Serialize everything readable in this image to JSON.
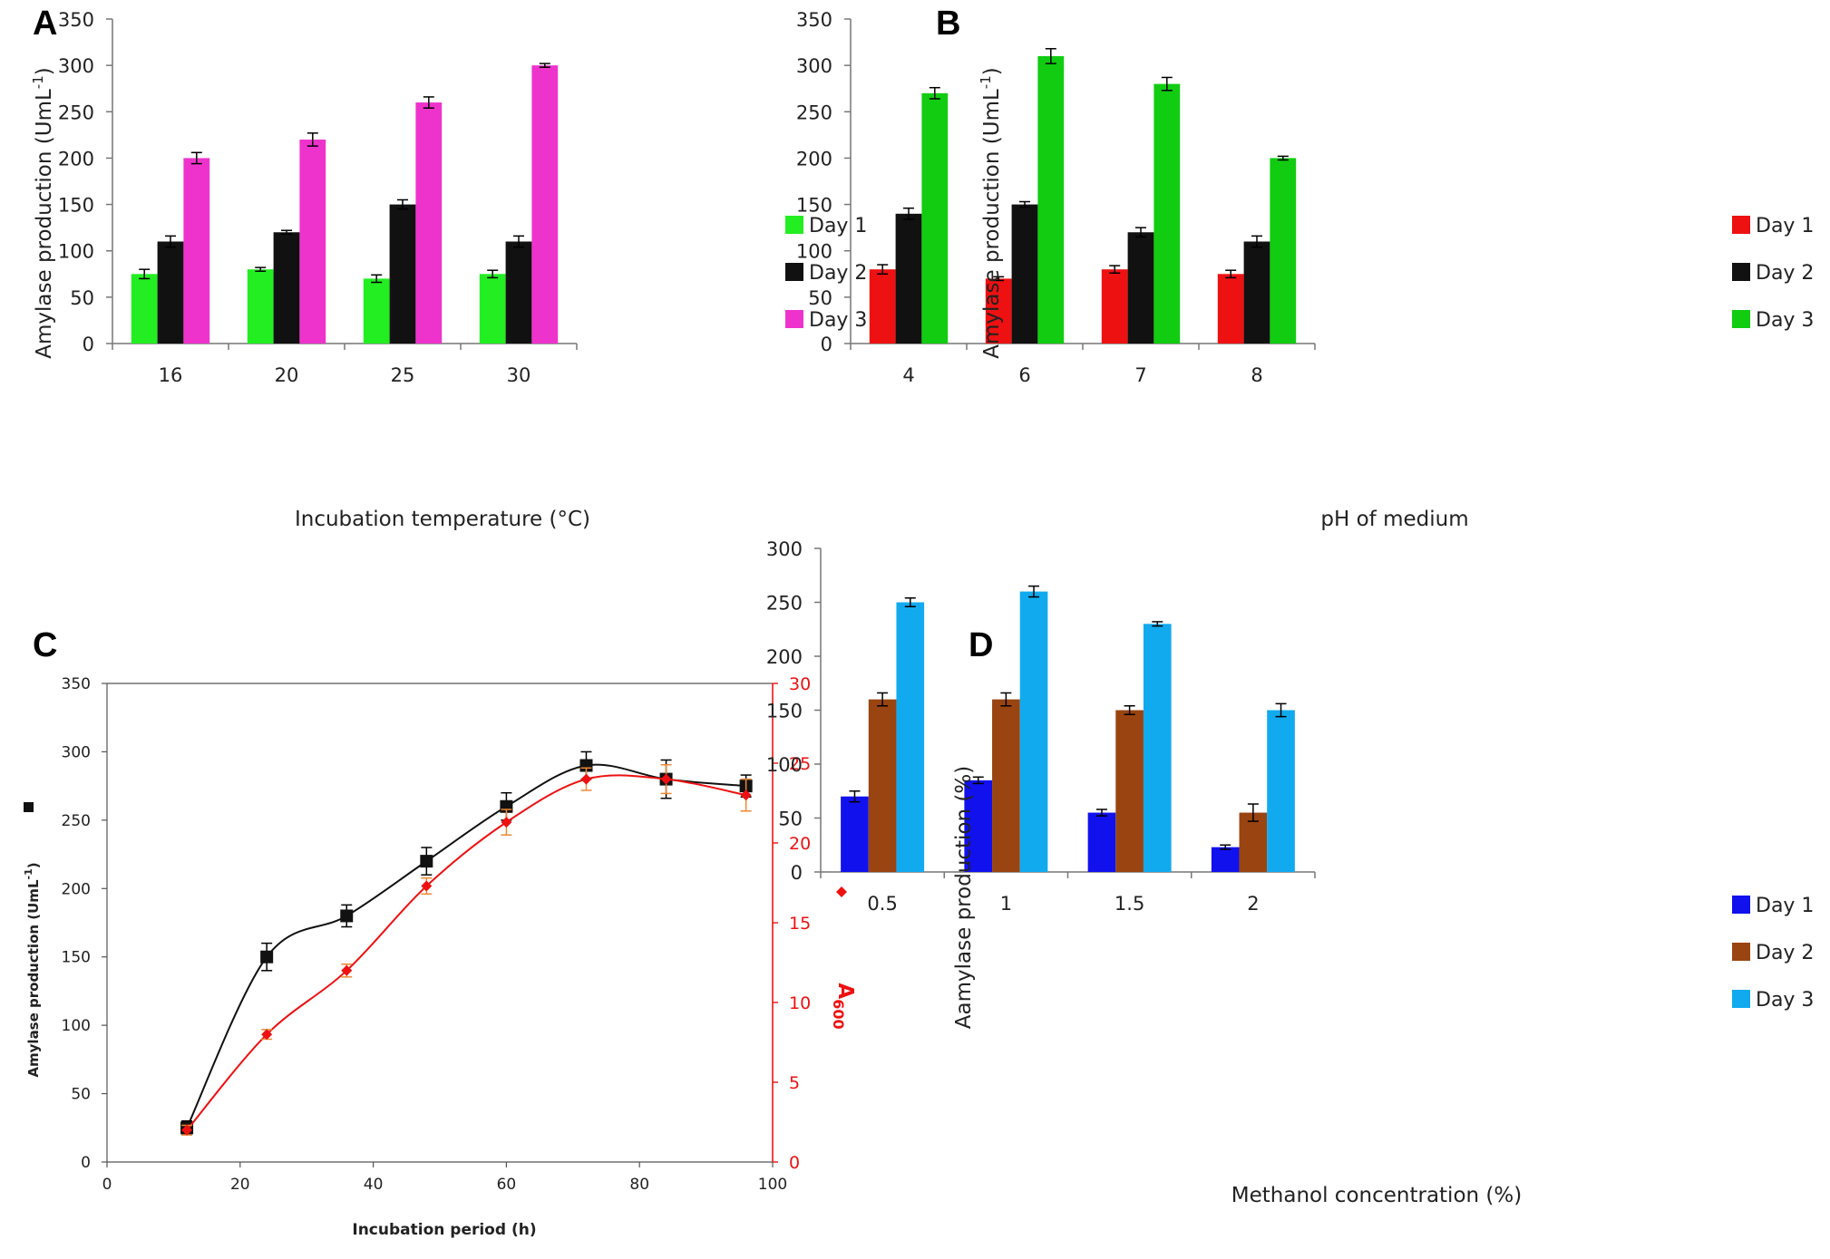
{
  "chart_data": [
    {
      "id": "A",
      "type": "bar",
      "panel_label": "A",
      "title": "",
      "xlabel": "Incubation temperature (°C)",
      "ylabel": "Amylase production (UmL-1)",
      "ylabel_main": "Amylase production (UmL",
      "ylabel_sup": "-1",
      "ylabel_end": ")",
      "ylim": [
        0,
        350
      ],
      "yticks": [
        0,
        50,
        100,
        150,
        200,
        250,
        300,
        350
      ],
      "categories": [
        "16",
        "20",
        "25",
        "30"
      ],
      "legend_position": "right",
      "series": [
        {
          "name": "Day 1",
          "color": "#22ee22",
          "values": [
            75,
            80,
            70,
            75
          ],
          "errors": [
            5,
            2,
            4,
            4
          ]
        },
        {
          "name": "Day 2",
          "color": "#111111",
          "values": [
            110,
            120,
            150,
            110
          ],
          "errors": [
            6,
            2,
            5,
            6
          ]
        },
        {
          "name": "Day 3",
          "color": "#ee33cc",
          "values": [
            200,
            220,
            260,
            300
          ],
          "errors": [
            6,
            7,
            6,
            2
          ]
        }
      ]
    },
    {
      "id": "B",
      "type": "bar",
      "panel_label": "B",
      "title": "",
      "xlabel": "pH of medium",
      "ylabel": "Amylase production (UmL-1)",
      "ylabel_main": "Amylase production (UmL",
      "ylabel_sup": "-1",
      "ylabel_end": ")",
      "ylim": [
        0,
        350
      ],
      "yticks": [
        0,
        50,
        100,
        150,
        200,
        250,
        300,
        350
      ],
      "categories": [
        "4",
        "6",
        "7",
        "8"
      ],
      "legend_position": "right",
      "series": [
        {
          "name": "Day 1",
          "color": "#ee1111",
          "values": [
            80,
            70,
            80,
            75
          ],
          "errors": [
            5,
            2,
            4,
            4
          ]
        },
        {
          "name": "Day 2",
          "color": "#111111",
          "values": [
            140,
            150,
            120,
            110
          ],
          "errors": [
            6,
            3,
            5,
            6
          ]
        },
        {
          "name": "Day 3",
          "color": "#11cc11",
          "values": [
            270,
            310,
            280,
            200
          ],
          "errors": [
            6,
            8,
            7,
            2
          ]
        }
      ]
    },
    {
      "id": "C",
      "type": "line",
      "panel_label": "C",
      "title": "",
      "xlabel": "Incubation period (h)",
      "ylabel": "Amylase production (UmL-1)",
      "ylabel_main": "Amylase production (UmL",
      "ylabel_sup": "-1",
      "ylabel_end": ")",
      "y2label": "A600",
      "y2label_main": "A",
      "y2label_sub": "600",
      "xlim": [
        0,
        100
      ],
      "xticks": [
        0,
        20,
        40,
        60,
        80,
        100
      ],
      "ylim": [
        0,
        350
      ],
      "yticks": [
        0,
        50,
        100,
        150,
        200,
        250,
        300,
        350
      ],
      "y2lim": [
        0,
        30
      ],
      "y2ticks": [
        0,
        5,
        10,
        15,
        20,
        25,
        30
      ],
      "series": [
        {
          "name": "Amylase production",
          "axis": "left",
          "color": "#111111",
          "marker": "square",
          "x": [
            12,
            24,
            36,
            48,
            60,
            72,
            84,
            96
          ],
          "y": [
            25,
            150,
            180,
            220,
            260,
            290,
            280,
            275
          ],
          "errors": [
            5,
            10,
            8,
            10,
            10,
            10,
            14,
            8
          ]
        },
        {
          "name": "A600",
          "axis": "right",
          "color": "#ee1111",
          "marker": "diamond",
          "x": [
            12,
            24,
            36,
            48,
            60,
            72,
            84,
            96
          ],
          "y": [
            2,
            8,
            12,
            17.3,
            21.3,
            24,
            24,
            23
          ],
          "errors": [
            0.3,
            0.3,
            0.4,
            0.5,
            0.8,
            0.7,
            0.9,
            1.0
          ]
        }
      ]
    },
    {
      "id": "D",
      "type": "bar",
      "panel_label": "D",
      "title": "",
      "xlabel": "Methanol concentration (%)",
      "ylabel": "Aamylase production (%)",
      "ylabel_main": "Aamylase production (%)",
      "ylabel_sup": "",
      "ylabel_end": "",
      "ylim": [
        0,
        300
      ],
      "yticks": [
        0,
        50,
        100,
        150,
        200,
        250,
        300
      ],
      "categories": [
        "0.5",
        "1",
        "1.5",
        "2"
      ],
      "legend_position": "right",
      "series": [
        {
          "name": "Day 1",
          "color": "#1111ee",
          "values": [
            70,
            85,
            55,
            23
          ],
          "errors": [
            5,
            3,
            3,
            2
          ]
        },
        {
          "name": "Day 2",
          "color": "#994411",
          "values": [
            160,
            160,
            150,
            55
          ],
          "errors": [
            6,
            6,
            4,
            8
          ]
        },
        {
          "name": "Day 3",
          "color": "#11aaee",
          "values": [
            250,
            260,
            230,
            150
          ],
          "errors": [
            4,
            5,
            2,
            6
          ]
        }
      ]
    }
  ]
}
